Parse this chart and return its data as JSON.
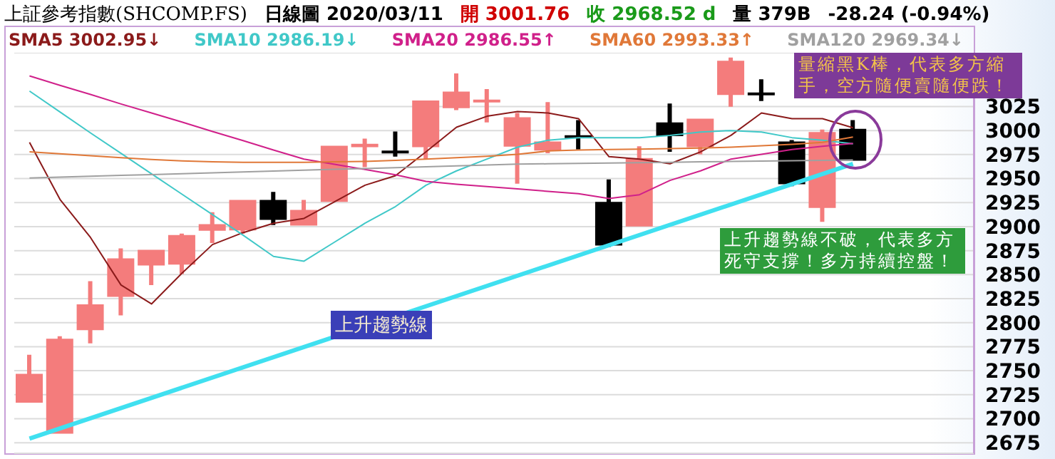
{
  "chart_data": {
    "type": "candlestick",
    "title": "上証參考指數(SHCOMP.FS)",
    "subtitle": "日線圖 2020/03/11",
    "annotations": [
      "開 3001.76",
      "收 2968.52 d",
      "量 379B",
      "-28.24 (-0.94%)",
      "量縮黑K棒，代表多方縮手，空方隨便賣隨便跌！",
      "上升趨勢線不破，代表多方死守支撐！多方持續控盤！"
    ],
    "categories": [
      null,
      null,
      null,
      null,
      null,
      null,
      null,
      null,
      null,
      null,
      null,
      null,
      null,
      null,
      null,
      null,
      null,
      null,
      null,
      null,
      null,
      null,
      null,
      null,
      null,
      null,
      null,
      null
    ],
    "ohlc": [
      [
        2716.6,
        2766.5,
        2716.6,
        2746.7
      ],
      [
        2684.4,
        2785.8,
        2684.4,
        2783.3
      ],
      [
        2792.2,
        2843.2,
        2778.4,
        2819
      ],
      [
        2826.9,
        2877.3,
        2807.6,
        2866.9
      ],
      [
        2859.5,
        2875.9,
        2839.2,
        2875.9
      ],
      [
        2860.5,
        2892.7,
        2850.6,
        2891.2
      ],
      [
        2895.6,
        2914.9,
        2882.8,
        2902.6
      ],
      [
        2896.1,
        2927.8,
        2892.7,
        2927.8
      ],
      [
        2927.8,
        2936.2,
        2901.6,
        2907
      ],
      [
        2901.1,
        2927.8,
        2901.1,
        2917.4
      ],
      [
        2925.8,
        2984.2,
        2925.8,
        2984.2
      ],
      [
        2982.7,
        2991.6,
        2961.9,
        2986.2
      ],
      [
        2979.2,
        2999,
        2972.8,
        2976.3
      ],
      [
        2982.7,
        3031.2,
        2969.8,
        3031.2
      ],
      [
        3023.3,
        3059.4,
        3021.3,
        3040.6
      ],
      [
        3029.2,
        3043.1,
        3008.4,
        3032.2
      ],
      [
        2983.2,
        3018.3,
        2944.6,
        3013.9
      ],
      [
        2979.2,
        3029.7,
        2976.3,
        2988.6
      ],
      [
        2995.1,
        3010.9,
        2980.2,
        2993.6
      ],
      [
        2925.8,
        2949.1,
        2878.8,
        2880.3
      ],
      [
        2900.1,
        2983.7,
        2900.1,
        2971.3
      ],
      [
        3008.4,
        3028.2,
        2977.8,
        2994.1
      ],
      [
        2982.7,
        3012.4,
        2975.3,
        3012.4
      ],
      [
        3037.1,
        3076,
        3024.8,
        3072.7
      ],
      [
        3039.6,
        3053.4,
        3030.7,
        3038.1
      ],
      [
        2988.6,
        2990.1,
        2942.1,
        2944.1
      ],
      [
        2919.4,
        3001,
        2905,
        2998.5
      ],
      [
        3001.76,
        3010.9,
        2968.52,
        2968.52
      ]
    ],
    "colors": [
      "#f47c7c",
      "#f47c7c",
      "#f47c7c",
      "#f47c7c",
      "#f47c7c",
      "#f47c7c",
      "#f47c7c",
      "#f47c7c",
      "#000000",
      "#f47c7c",
      "#f47c7c",
      "#f47c7c",
      "#000000",
      "#f47c7c",
      "#f47c7c",
      "#f47c7c",
      "#f47c7c",
      "#f47c7c",
      "#000000",
      "#000000",
      "#f47c7c",
      "#000000",
      "#f47c7c",
      "#f47c7c",
      "#000000",
      "#000000",
      "#f47c7c",
      "#000000"
    ],
    "series": [
      {
        "type": "line",
        "name": "SMA5 3002.95↓",
        "color": "#8b1a1a",
        "values": [
          2987.7,
          2928.3,
          2888.7,
          2839.2,
          2819.5,
          2851.6,
          2881.3,
          2893.7,
          2903.5,
          2908.5,
          2925.8,
          2943.1,
          2953,
          2977.8,
          3003.5,
          3014.9,
          3019.8,
          3018.3,
          3012.4,
          2972.8,
          2970.3,
          2965.4,
          2977.8,
          2995,
          3018.3,
          3012.4,
          3012.4,
          3002.95
        ]
      },
      {
        "type": "line",
        "name": "SMA10 2986.19↓",
        "color": "#40c8c8",
        "values": [
          3041.1,
          3019.3,
          2997.5,
          2976.3,
          2955,
          2933.7,
          2912.5,
          2891.2,
          2869,
          2864,
          2883.8,
          2903.5,
          2920.9,
          2943.1,
          2958,
          2970.3,
          2982.7,
          2990,
          2992.6,
          2992.6,
          2992.6,
          2995,
          2998.5,
          3000,
          2998.5,
          2992.6,
          2990,
          2986.19
        ]
      },
      {
        "type": "line",
        "name": "SMA20 2986.55↑",
        "color": "#d0208a",
        "values": [
          3056.9,
          3047,
          3037.6,
          3027.7,
          3018.3,
          3008.9,
          2999,
          2989.6,
          2979.7,
          2970.3,
          2964.9,
          2959.5,
          2954,
          2947.1,
          2944.1,
          2941.7,
          2939.2,
          2936.7,
          2934.2,
          2929.3,
          2933.2,
          2948.1,
          2958,
          2970.3,
          2975.3,
          2980.2,
          2983.7,
          2986.55
        ]
      },
      {
        "type": "line",
        "name": "SMA60 2993.33↑",
        "color": "#e07838",
        "values": [
          2977.8,
          2975.8,
          2973.8,
          2971.8,
          2969.8,
          2968.4,
          2967.4,
          2966.9,
          2966.9,
          2966.9,
          2967.4,
          2967.9,
          2968.9,
          2970.3,
          2971.8,
          2973.3,
          2975.3,
          2978.7,
          2979.7,
          2980.2,
          2980.7,
          2981.2,
          2981.7,
          2982.7,
          2984.2,
          2985.7,
          2987.7,
          2993.33
        ]
      },
      {
        "type": "line",
        "name": "SMA120 2969.34↓",
        "color": "#a0a0a0",
        "values": [
          2950.6,
          2951.5,
          2952.4,
          2953.3,
          2954.2,
          2955.1,
          2956,
          2956.9,
          2957.8,
          2958.7,
          2959.6,
          2960.5,
          2961.4,
          2962.3,
          2963.2,
          2964.1,
          2965,
          2965.4,
          2965.8,
          2966.2,
          2966.6,
          2967,
          2967.4,
          2967.8,
          2968.2,
          2968.6,
          2969,
          2969.34
        ]
      },
      {
        "type": "line",
        "name": "上升趨勢線",
        "color": "#40e0f0",
        "values": [
          2679.3,
          null,
          null,
          null,
          null,
          null,
          null,
          null,
          null,
          null,
          null,
          null,
          null,
          null,
          null,
          null,
          null,
          null,
          null,
          null,
          null,
          null,
          null,
          null,
          null,
          null,
          null,
          2965.4
        ]
      }
    ],
    "ylim": [
      2664,
      3081
    ],
    "yticks": [
      2675,
      2700,
      2725,
      2750,
      2775,
      2800,
      2825,
      2850,
      2875,
      2900,
      2925,
      2950,
      2975,
      3000,
      3025
    ],
    "grid": "y",
    "legend": "top",
    "tick_labels": "y",
    "marker": "none",
    "line_style": "solid"
  }
}
